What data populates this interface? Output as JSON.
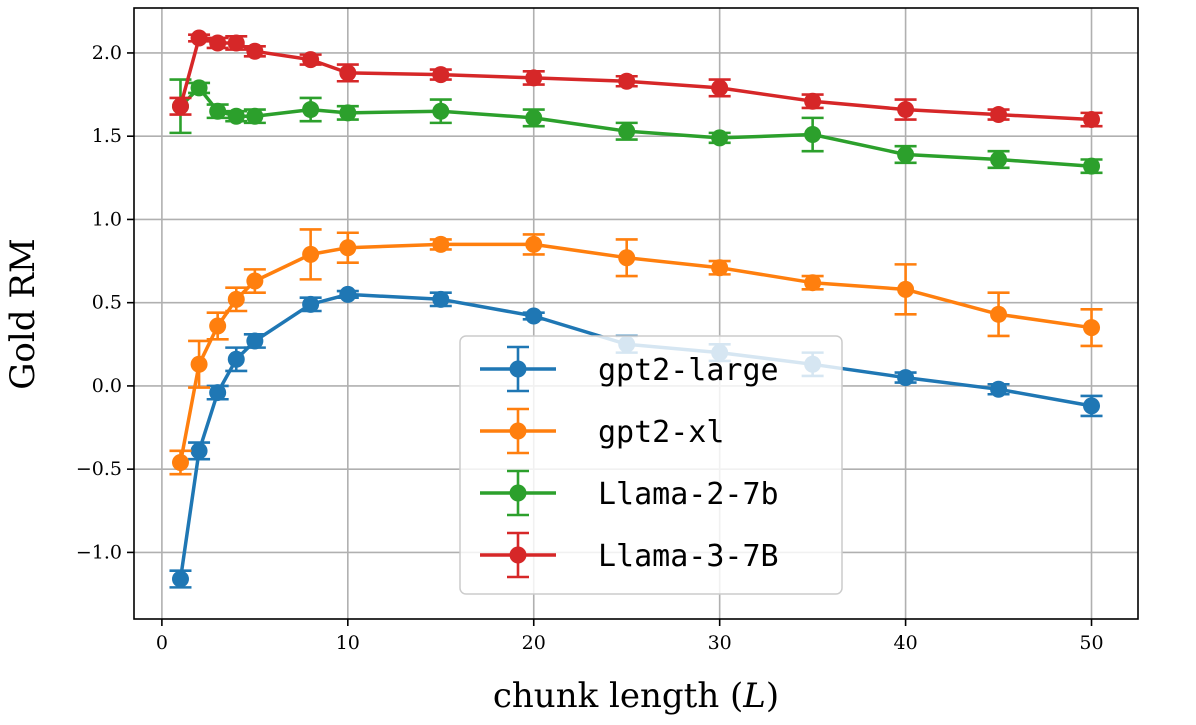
{
  "chart_data": {
    "type": "line",
    "xlabel": "chunk length (L)",
    "xlabel_prefix": "chunk length (",
    "xlabel_var": "L",
    "xlabel_suffix": ")",
    "ylabel": "Gold RM",
    "xlim": [
      -1.5,
      52.5
    ],
    "ylim": [
      -1.4,
      2.27
    ],
    "xticks": [
      0,
      10,
      20,
      30,
      40,
      50
    ],
    "xtick_labels": [
      "0",
      "10",
      "20",
      "30",
      "40",
      "50"
    ],
    "yticks": [
      -1.0,
      -0.5,
      0.0,
      0.5,
      1.0,
      1.5,
      2.0
    ],
    "ytick_labels": [
      "−1.0",
      "−0.5",
      "0.0",
      "0.5",
      "1.0",
      "1.5",
      "2.0"
    ],
    "grid": true,
    "legend_position": "lower-center",
    "series": [
      {
        "name": "gpt2-large",
        "color": "#1f77b4",
        "x": [
          1,
          2,
          3,
          4,
          5,
          8,
          10,
          15,
          20,
          25,
          30,
          35,
          40,
          45,
          50
        ],
        "y": [
          -1.16,
          -0.39,
          -0.04,
          0.16,
          0.27,
          0.49,
          0.55,
          0.52,
          0.42,
          0.25,
          0.2,
          0.13,
          0.05,
          -0.02,
          -0.12
        ],
        "err": [
          0.05,
          0.05,
          0.04,
          0.07,
          0.04,
          0.04,
          0.02,
          0.04,
          0.02,
          0.05,
          0.05,
          0.07,
          0.03,
          0.03,
          0.06
        ]
      },
      {
        "name": "gpt2-xl",
        "color": "#ff7f0e",
        "x": [
          1,
          2,
          3,
          4,
          5,
          8,
          10,
          15,
          20,
          25,
          30,
          35,
          40,
          45,
          50
        ],
        "y": [
          -0.46,
          0.13,
          0.36,
          0.52,
          0.63,
          0.79,
          0.83,
          0.85,
          0.85,
          0.77,
          0.71,
          0.62,
          0.58,
          0.43,
          0.35
        ],
        "err": [
          0.07,
          0.14,
          0.08,
          0.07,
          0.07,
          0.15,
          0.09,
          0.03,
          0.06,
          0.11,
          0.04,
          0.04,
          0.15,
          0.13,
          0.11
        ]
      },
      {
        "name": "Llama-2-7b",
        "color": "#2ca02c",
        "x": [
          1,
          2,
          3,
          4,
          5,
          8,
          10,
          15,
          20,
          25,
          30,
          35,
          40,
          45,
          50
        ],
        "y": [
          1.68,
          1.79,
          1.65,
          1.62,
          1.62,
          1.66,
          1.64,
          1.65,
          1.61,
          1.53,
          1.49,
          1.51,
          1.39,
          1.36,
          1.32
        ],
        "err": [
          0.16,
          0.03,
          0.04,
          0.03,
          0.04,
          0.07,
          0.04,
          0.07,
          0.05,
          0.05,
          0.03,
          0.1,
          0.05,
          0.05,
          0.04
        ]
      },
      {
        "name": "Llama-3-7B",
        "color": "#d62728",
        "x": [
          1,
          2,
          3,
          4,
          5,
          8,
          10,
          15,
          20,
          25,
          30,
          35,
          40,
          45,
          50
        ],
        "y": [
          1.68,
          2.09,
          2.06,
          2.06,
          2.01,
          1.96,
          1.88,
          1.87,
          1.85,
          1.83,
          1.79,
          1.71,
          1.66,
          1.63,
          1.6
        ],
        "err": [
          0.05,
          0.02,
          0.03,
          0.04,
          0.03,
          0.03,
          0.05,
          0.03,
          0.04,
          0.03,
          0.05,
          0.04,
          0.06,
          0.03,
          0.04
        ]
      }
    ]
  }
}
